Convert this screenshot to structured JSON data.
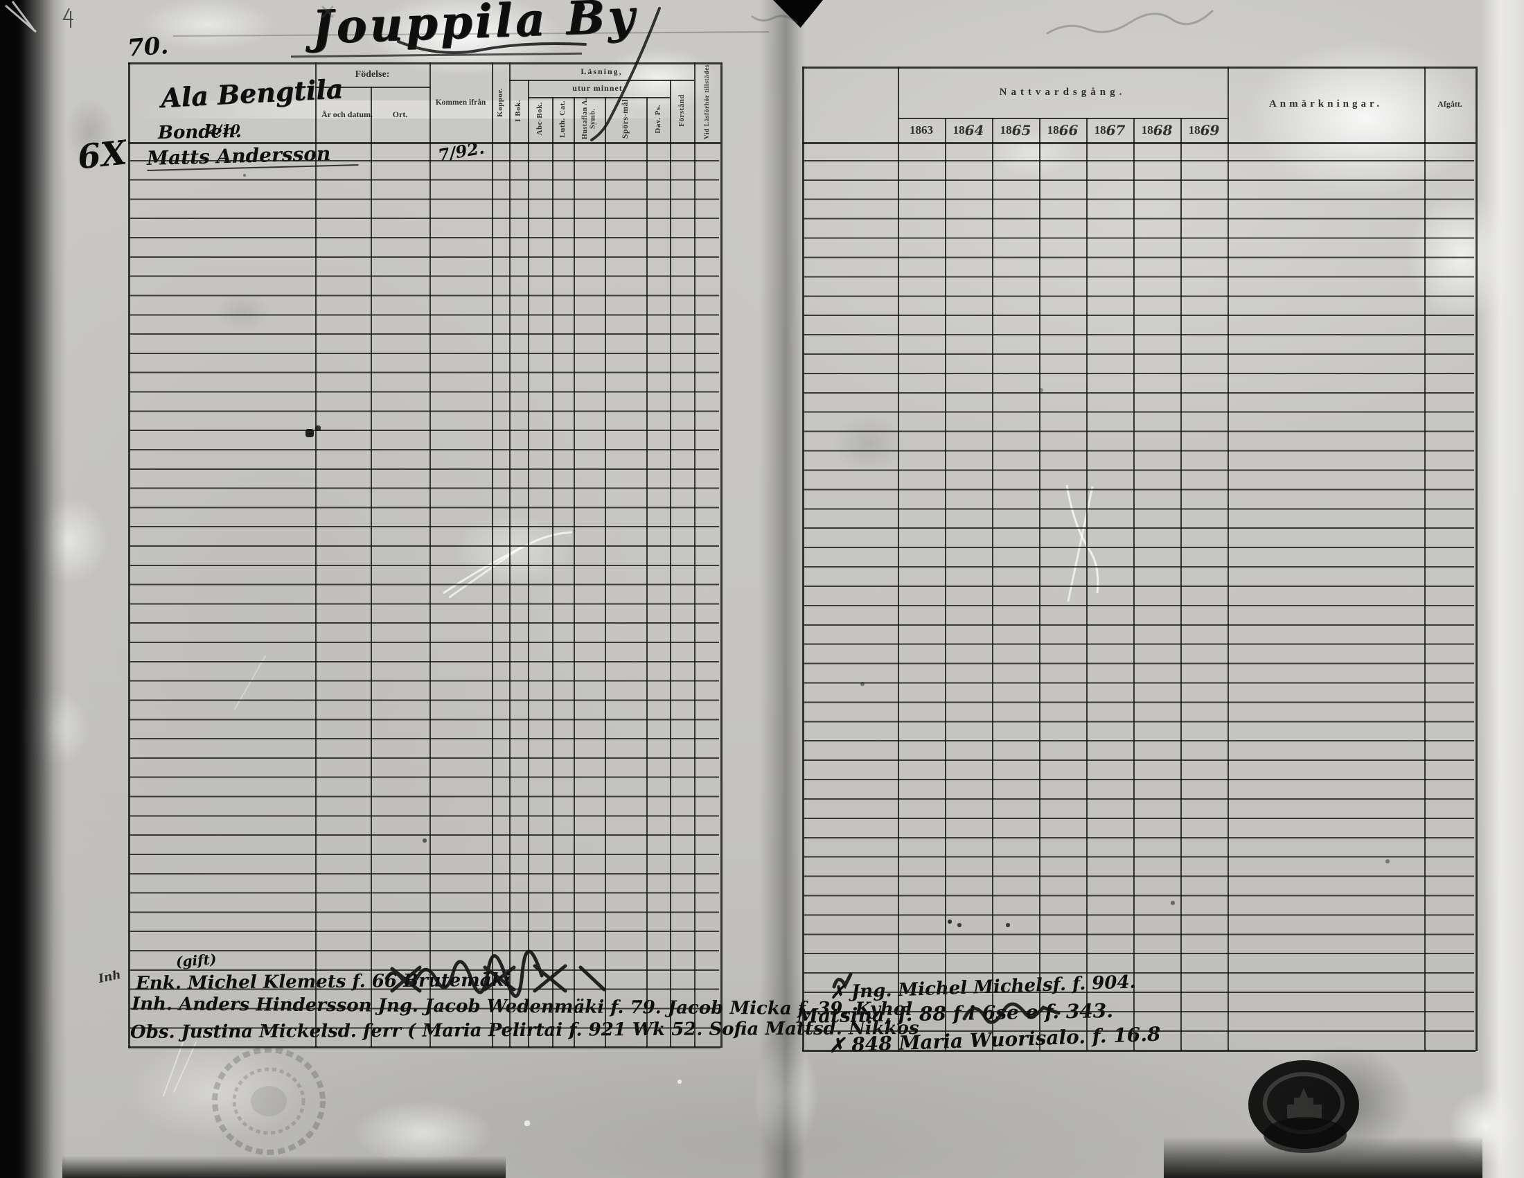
{
  "page": {
    "number": "70.",
    "title": "Jouppila By"
  },
  "left_table": {
    "farm_name": "Ala Bengtila",
    "farm_fraction": "2/10",
    "occupation": "Bonden.",
    "headers": {
      "fodelse": "Födelse:",
      "ar_och_datum": "År och datum.",
      "ort": "Ort.",
      "kommen_ifran": "Kommen ifrån",
      "koppor": "Koppor.",
      "lasning": "Läsning,",
      "utur_minnet": "utur minnet.",
      "i_bok": "I Bok.",
      "abc_bok": "Abc-Bok.",
      "luth_cat": "Luth. Cat.",
      "hustaflan": "Hustaflan A. Symb.",
      "sporsmal": "Spörs-mål",
      "dav_ps": "Dav. Ps.",
      "forstand": "Förstånd",
      "vid_lasforhor": "Vid Läsförhör tillstädes"
    },
    "entry": {
      "margin_mark": "6X",
      "name": "Matts Andersson",
      "kommen_ifran": "7/92."
    },
    "bottom_entries": {
      "margin_note": "Inh",
      "note_above": "(gift)",
      "row1": "Enk. Michel Klemets f. 66  Brutemäki",
      "row2": "Inh. Anders Hindersson   Jng. Jacob Wedenmäki f. 79.  Jacob Micka f. 39.  Kyhol",
      "row3": "Obs. Justina Mickelsd. ferr ( Maria Pelirtai f. 921 Wk 52.  Sofia Mattsd.  Nikkos"
    }
  },
  "right_table": {
    "headers": {
      "nattvardsgang": "Nattvardsgång.",
      "anmarkningar": "Anmärkningar.",
      "afgatt": "Afgått."
    },
    "years": [
      {
        "p": "18",
        "s": "63"
      },
      {
        "p": "18",
        "s": "64"
      },
      {
        "p": "18",
        "s": "65"
      },
      {
        "p": "18",
        "s": "66"
      },
      {
        "p": "18",
        "s": "67"
      },
      {
        "p": "18",
        "s": "68"
      },
      {
        "p": "18",
        "s": "69"
      }
    ],
    "bottom_entries": {
      "row1": "✗ Jng. Michel Michelsf. f. 904.",
      "row2": "Matsina, f. 88      f i 6se e      f. 343.",
      "row3": "✗ 848      Maria Wuorisalo. f. 16.8"
    }
  }
}
